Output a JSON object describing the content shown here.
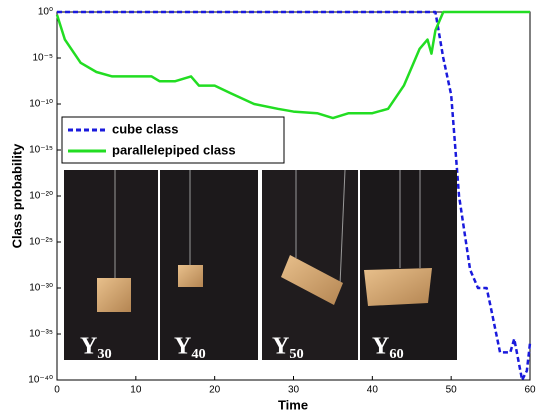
{
  "chart_data": {
    "type": "line",
    "xlabel": "Time",
    "ylabel": "Class probability",
    "xlim": [
      0,
      60
    ],
    "xticks": [
      0,
      10,
      20,
      30,
      40,
      50,
      60
    ],
    "ylim": [
      1e-40,
      1
    ],
    "log_y": true,
    "yticks": [
      {
        "value": 1,
        "label": "10⁰"
      },
      {
        "value": 1e-05,
        "label": "10⁻⁵"
      },
      {
        "value": 1e-10,
        "label": "10⁻¹⁰"
      },
      {
        "value": 1e-15,
        "label": "10⁻¹⁵"
      },
      {
        "value": 1e-20,
        "label": "10⁻²⁰"
      },
      {
        "value": 1e-25,
        "label": "10⁻²⁵"
      },
      {
        "value": 1e-30,
        "label": "10⁻³⁰"
      },
      {
        "value": 1e-35,
        "label": "10⁻³⁵"
      },
      {
        "value": 1e-40,
        "label": "10⁻⁴⁰"
      }
    ],
    "legend": "upper left",
    "series": [
      {
        "name": "cube class",
        "color": "#1a1adc",
        "dash": true,
        "x": [
          0,
          48,
          49,
          50,
          51,
          52.4,
          53.4,
          54.5,
          55,
          56.2,
          57.5,
          58,
          59,
          59.6,
          60
        ],
        "values": [
          1,
          1,
          1e-05,
          1e-09,
          1e-20,
          1e-28,
          1e-30,
          1e-30,
          1e-32,
          1e-37,
          1e-37,
          3e-36,
          1e-40,
          1e-39,
          1e-36
        ]
      },
      {
        "name": "parallelepiped class",
        "color": "#22dd22",
        "dash": false,
        "x": [
          0,
          1,
          3,
          5,
          7,
          10,
          12,
          13,
          15,
          17,
          18,
          20,
          22,
          25,
          28,
          30,
          33,
          35,
          37,
          40,
          42,
          44,
          45,
          46,
          47,
          47.5,
          48,
          49,
          60
        ],
        "values": [
          0.5,
          0.001,
          3e-06,
          3e-07,
          1e-07,
          1e-07,
          1e-07,
          3e-08,
          3e-08,
          1e-07,
          1e-08,
          1e-08,
          1.5e-09,
          1e-10,
          3e-11,
          1.5e-11,
          1e-11,
          3e-12,
          1e-11,
          1e-11,
          3e-11,
          1e-08,
          1e-06,
          0.0001,
          0.001,
          3e-05,
          0.01,
          1,
          1
        ]
      }
    ]
  },
  "insets": [
    {
      "label": "Y₃₀"
    },
    {
      "label": "Y₄₀"
    },
    {
      "label": "Y₅₀"
    },
    {
      "label": "Y₆₀"
    }
  ]
}
